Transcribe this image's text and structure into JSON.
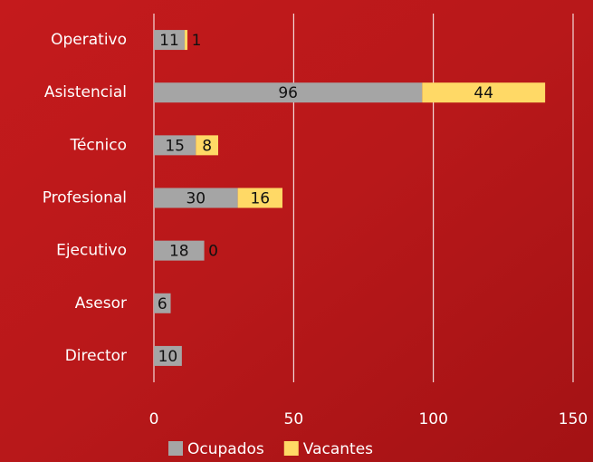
{
  "chart_data": {
    "type": "stacked_barh",
    "categories": [
      "Operativo",
      "Asistencial",
      "Técnico",
      "Profesional",
      "Ejecutivo",
      "Asesor",
      "Director"
    ],
    "series": [
      {
        "name": "Ocupados",
        "color": "#a5a5a5",
        "values": [
          11,
          96,
          15,
          30,
          18,
          6,
          10
        ]
      },
      {
        "name": "Vacantes",
        "color": "#ffd966",
        "values": [
          1,
          44,
          8,
          16,
          0,
          null,
          null
        ]
      }
    ],
    "xlim": [
      0,
      150
    ],
    "xticks": [
      0,
      50,
      100,
      150
    ],
    "grid": true,
    "legend": "bottom"
  }
}
